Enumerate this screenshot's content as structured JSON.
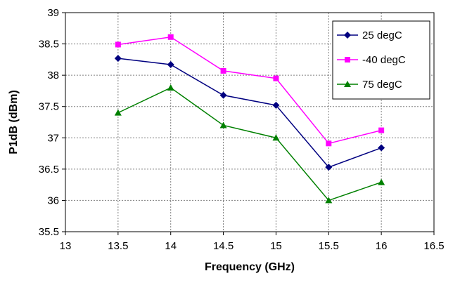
{
  "chart_data": {
    "type": "line",
    "title": "",
    "xlabel": "Frequency (GHz)",
    "ylabel": "P1dB (dBm)",
    "xlim": [
      13,
      16.5
    ],
    "ylim": [
      35.5,
      39
    ],
    "xticks": [
      "13",
      "13.5",
      "14",
      "14.5",
      "15",
      "15.5",
      "16",
      "16.5"
    ],
    "yticks": [
      "35.5",
      "36",
      "36.5",
      "37",
      "37.5",
      "38",
      "38.5",
      "39"
    ],
    "x": [
      13.5,
      14,
      14.5,
      15,
      15.5,
      16
    ],
    "grid": true,
    "legend_position": "top-right",
    "series": [
      {
        "name": "25 degC",
        "color": "#000080",
        "marker": "diamond",
        "values": [
          38.27,
          38.17,
          37.68,
          37.52,
          36.53,
          36.84
        ]
      },
      {
        "name": "-40 degC",
        "color": "#FF00FF",
        "marker": "square",
        "values": [
          38.49,
          38.61,
          38.07,
          37.95,
          36.91,
          37.12
        ]
      },
      {
        "name": "75 degC",
        "color": "#008000",
        "marker": "triangle",
        "values": [
          37.4,
          37.8,
          37.2,
          37.0,
          36.0,
          36.29
        ]
      }
    ]
  }
}
